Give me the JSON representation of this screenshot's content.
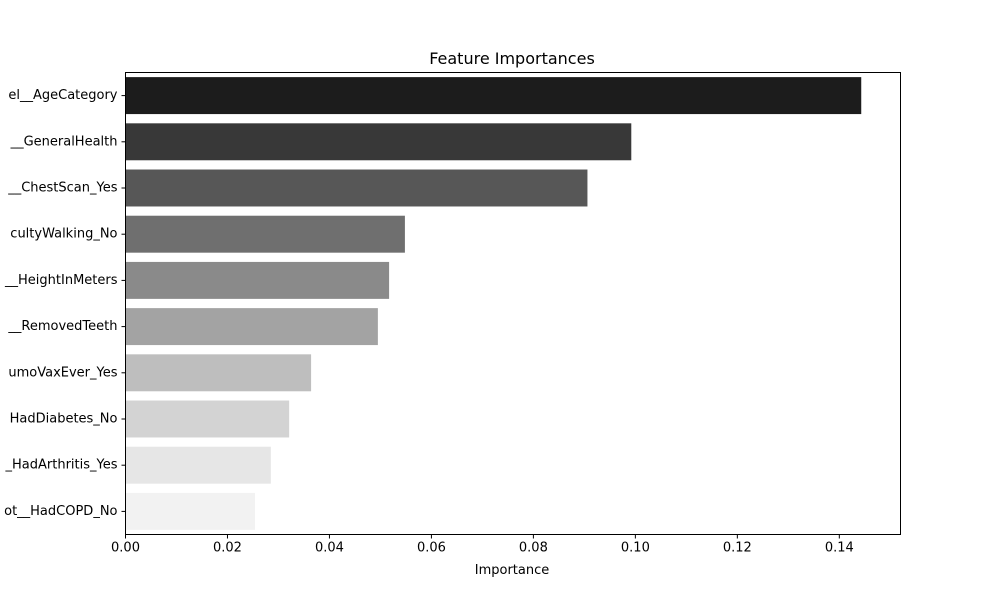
{
  "chart_data": {
    "type": "bar",
    "orientation": "horizontal",
    "title": "Feature Importances",
    "xlabel": "Importance",
    "ylabel": "",
    "xlim": [
      0,
      0.152
    ],
    "xticks": [
      "0.00",
      "0.02",
      "0.04",
      "0.06",
      "0.08",
      "0.10",
      "0.12",
      "0.14"
    ],
    "grid": false,
    "legend": "none",
    "categories": [
      "el__AgeCategory",
      "__GeneralHealth",
      "__ChestScan_Yes",
      "cultyWalking_No",
      "__HeightInMeters",
      "__RemovedTeeth",
      "umoVaxEver_Yes",
      "HadDiabetes_No",
      "_HadArthritis_Yes",
      "ot__HadCOPD_No"
    ],
    "values": [
      0.1443,
      0.0992,
      0.0906,
      0.0548,
      0.0517,
      0.0495,
      0.0364,
      0.0321,
      0.0285,
      0.0254
    ],
    "colors": [
      "#1c1c1c",
      "#383838",
      "#575757",
      "#6f6f6f",
      "#8a8a8a",
      "#a3a3a3",
      "#bebebe",
      "#d3d3d3",
      "#e6e6e6",
      "#f2f2f2"
    ]
  }
}
